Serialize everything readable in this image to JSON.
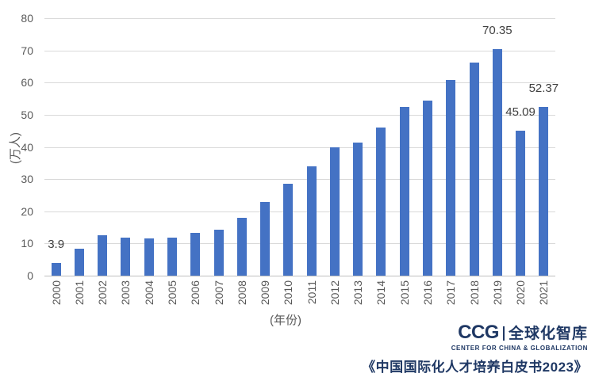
{
  "chart_data": {
    "type": "bar",
    "title": "",
    "categories": [
      "2000",
      "2001",
      "2002",
      "2003",
      "2004",
      "2005",
      "2006",
      "2007",
      "2008",
      "2009",
      "2010",
      "2011",
      "2012",
      "2013",
      "2014",
      "2015",
      "2016",
      "2017",
      "2018",
      "2019",
      "2020",
      "2021"
    ],
    "values": [
      3.9,
      8.4,
      12.5,
      11.73,
      11.47,
      11.85,
      13.4,
      14.4,
      17.98,
      22.93,
      28.47,
      33.97,
      39.96,
      41.39,
      45.98,
      52.37,
      54.45,
      60.84,
      66.21,
      70.35,
      45.09,
      52.37
    ],
    "data_labels": {
      "2000": "3.9",
      "2019": "70.35",
      "2020": "45.09",
      "2021": "52.37"
    },
    "xlabel": "(年份)",
    "ylabel": "(万人)",
    "ylim": [
      0,
      80
    ],
    "yticks": [
      0,
      10,
      20,
      30,
      40,
      50,
      60,
      70,
      80
    ],
    "grid": true,
    "legend": "none",
    "bar_color": "#4472C4",
    "gridline_color": "#d9d9d9",
    "axis_line_color": "#bfbfbf",
    "tick_label_color": "#595959",
    "data_label_color": "#404040"
  },
  "footer": {
    "logo_ccg": "CCG",
    "logo_cn": "全球化智库",
    "logo_sub": "CENTER FOR CHINA & GLOBALIZATION",
    "source_title": "《中国国际化人才培养白皮书2023》",
    "brand_color": "#1F3864"
  }
}
